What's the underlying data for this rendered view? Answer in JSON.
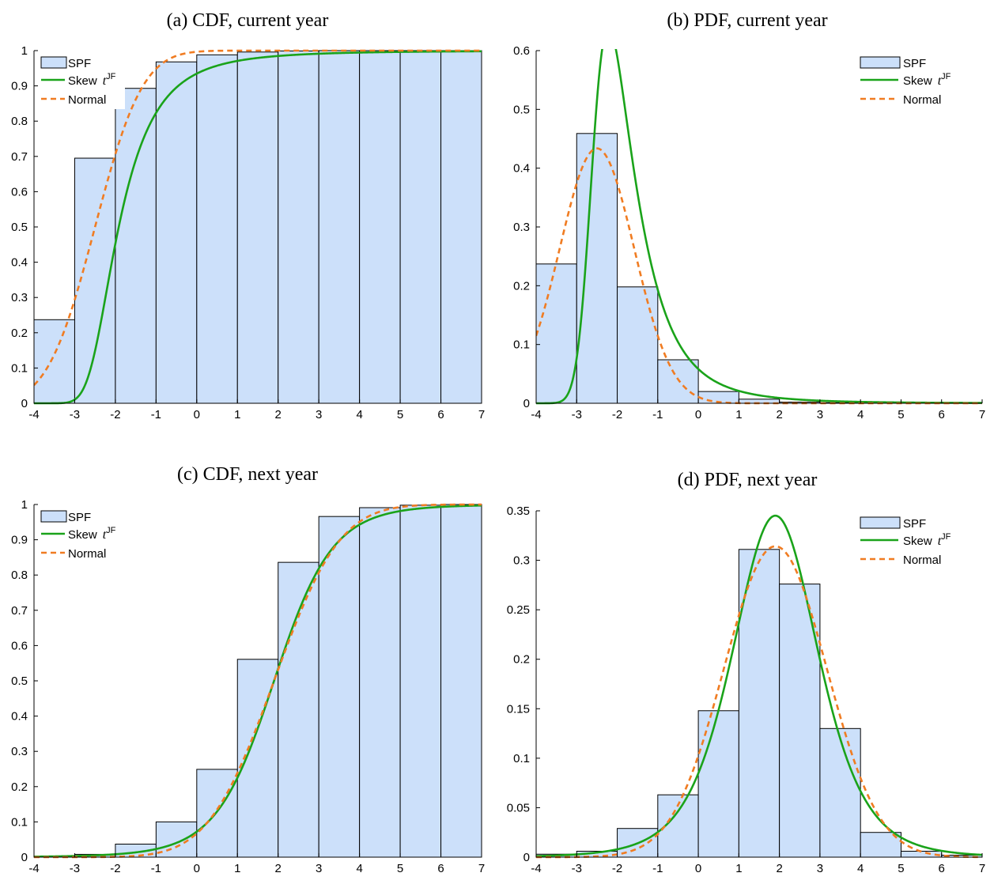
{
  "colors": {
    "bar_fill": "#cce0fa",
    "bar_stroke": "#000000",
    "skew_line": "#1aa31a",
    "normal_line": "#f07c22"
  },
  "legend": {
    "spf": "SPF",
    "skew_prefix": "Skew",
    "skew_t": "t",
    "skew_sup": "JF",
    "normal": "Normal"
  },
  "chart_data": [
    {
      "id": "a",
      "type": "bar",
      "title": "(a) CDF, current year",
      "xlabel": "",
      "ylabel": "",
      "xlim": [
        -4,
        7
      ],
      "ylim": [
        0,
        1
      ],
      "x_ticks": [
        -4,
        -3,
        -2,
        -1,
        0,
        1,
        2,
        3,
        4,
        5,
        6,
        7
      ],
      "y_ticks": [
        "0",
        "0.1",
        "0.2",
        "0.3",
        "0.4",
        "0.5",
        "0.6",
        "0.7",
        "0.8",
        "0.9",
        "1"
      ],
      "y_tick_values": [
        0,
        0.1,
        0.2,
        0.3,
        0.4,
        0.5,
        0.6,
        0.7,
        0.8,
        0.9,
        1
      ],
      "legend_position": "top-left",
      "bin_edges": [
        -4,
        -3,
        -2,
        -1,
        0,
        1,
        2,
        3,
        4,
        5,
        6,
        7
      ],
      "series": [
        {
          "name": "SPF",
          "kind": "bars",
          "values": [
            0.237,
            0.695,
            0.893,
            0.968,
            0.988,
            0.996,
            0.999,
            1.0,
            1.0,
            1.0,
            1.0
          ]
        },
        {
          "name": "Skew t JF",
          "kind": "line",
          "dist": "skew",
          "cdf": true,
          "mu": -2.62,
          "sigma": 0.92,
          "alpha": 3.0,
          "df": 3
        },
        {
          "name": "Normal",
          "kind": "line",
          "dist": "normal",
          "cdf": true,
          "mu": -2.5,
          "sigma": 0.92
        }
      ]
    },
    {
      "id": "b",
      "type": "bar",
      "title": "(b) PDF, current year",
      "xlabel": "",
      "ylabel": "",
      "xlim": [
        -4,
        7
      ],
      "ylim": [
        0,
        0.6
      ],
      "x_ticks": [
        -4,
        -3,
        -2,
        -1,
        0,
        1,
        2,
        3,
        4,
        5,
        6,
        7
      ],
      "y_ticks": [
        "0",
        "0.1",
        "0.2",
        "0.3",
        "0.4",
        "0.5",
        "0.6"
      ],
      "y_tick_values": [
        0,
        0.1,
        0.2,
        0.3,
        0.4,
        0.5,
        0.6
      ],
      "legend_position": "top-right",
      "bin_edges": [
        -4,
        -3,
        -2,
        -1,
        0,
        1,
        2,
        3,
        4,
        5,
        6,
        7
      ],
      "series": [
        {
          "name": "SPF",
          "kind": "bars",
          "values": [
            0.237,
            0.459,
            0.198,
            0.074,
            0.02,
            0.007,
            0.002,
            0.001,
            0.001,
            0.0,
            0.0
          ]
        },
        {
          "name": "Skew t JF",
          "kind": "line",
          "dist": "skew",
          "cdf": false,
          "mu": -2.62,
          "sigma": 0.92,
          "alpha": 3.0,
          "df": 3
        },
        {
          "name": "Normal",
          "kind": "line",
          "dist": "normal",
          "cdf": false,
          "mu": -2.5,
          "sigma": 0.92
        }
      ]
    },
    {
      "id": "c",
      "type": "bar",
      "title": "(c) CDF, next year",
      "xlabel": "",
      "ylabel": "",
      "xlim": [
        -4,
        7
      ],
      "ylim": [
        0,
        1
      ],
      "x_ticks": [
        -4,
        -3,
        -2,
        -1,
        0,
        1,
        2,
        3,
        4,
        5,
        6,
        7
      ],
      "y_ticks": [
        "0",
        "0.1",
        "0.2",
        "0.3",
        "0.4",
        "0.5",
        "0.6",
        "0.7",
        "0.8",
        "0.9",
        "1"
      ],
      "y_tick_values": [
        0,
        0.1,
        0.2,
        0.3,
        0.4,
        0.5,
        0.6,
        0.7,
        0.8,
        0.9,
        1
      ],
      "legend_position": "top-left",
      "bin_edges": [
        -4,
        -3,
        -2,
        -1,
        0,
        1,
        2,
        3,
        4,
        5,
        6,
        7
      ],
      "series": [
        {
          "name": "SPF",
          "kind": "bars",
          "values": [
            0.003,
            0.008,
            0.037,
            0.1,
            0.249,
            0.561,
            0.836,
            0.966,
            0.991,
            0.998,
            1.0
          ]
        },
        {
          "name": "Skew t JF",
          "kind": "line",
          "dist": "t",
          "cdf": true,
          "mu": 1.9,
          "sigma": 1.1,
          "df": 5
        },
        {
          "name": "Normal",
          "kind": "line",
          "dist": "normal",
          "cdf": true,
          "mu": 1.9,
          "sigma": 1.27
        }
      ]
    },
    {
      "id": "d",
      "type": "bar",
      "title": "(d) PDF, next year",
      "xlabel": "",
      "ylabel": "",
      "xlim": [
        -4,
        7
      ],
      "ylim": [
        0,
        0.35
      ],
      "x_ticks": [
        -4,
        -3,
        -2,
        -1,
        0,
        1,
        2,
        3,
        4,
        5,
        6,
        7
      ],
      "y_ticks": [
        "0",
        "0.05",
        "0.1",
        "0.15",
        "0.2",
        "0.25",
        "0.3",
        "0.35"
      ],
      "y_tick_values": [
        0,
        0.05,
        0.1,
        0.15,
        0.2,
        0.25,
        0.3,
        0.35
      ],
      "legend_position": "top-right",
      "bin_edges": [
        -4,
        -3,
        -2,
        -1,
        0,
        1,
        2,
        3,
        4,
        5,
        6,
        7
      ],
      "series": [
        {
          "name": "SPF",
          "kind": "bars",
          "values": [
            0.003,
            0.006,
            0.029,
            0.063,
            0.148,
            0.311,
            0.276,
            0.13,
            0.025,
            0.006,
            0.002
          ]
        },
        {
          "name": "Skew t JF",
          "kind": "line",
          "dist": "t",
          "cdf": false,
          "mu": 1.9,
          "sigma": 1.1,
          "df": 5
        },
        {
          "name": "Normal",
          "kind": "line",
          "dist": "normal",
          "cdf": false,
          "mu": 1.9,
          "sigma": 1.27
        }
      ]
    }
  ]
}
